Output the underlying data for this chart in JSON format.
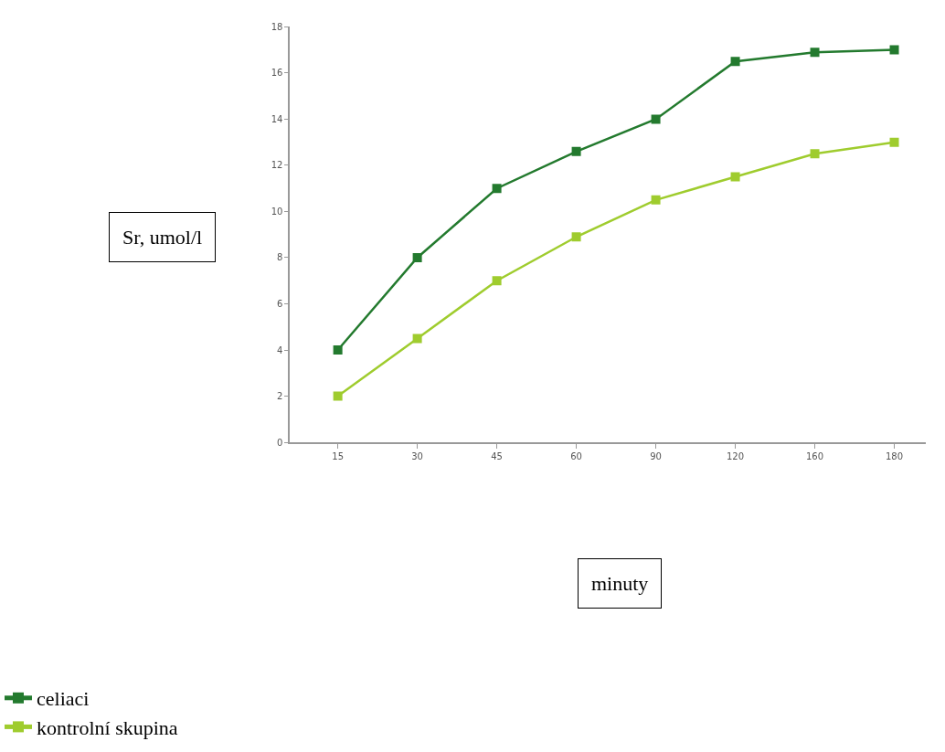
{
  "chart_data": {
    "type": "line",
    "annotations": [
      "minuty"
    ],
    "ylabel": "Sr, umol/l",
    "categories": [
      "15",
      "30",
      "45",
      "60",
      "90",
      "120",
      "160",
      "180"
    ],
    "series": [
      {
        "name": "celiaci",
        "color": "#237a2e",
        "values": [
          4,
          8,
          11,
          12.6,
          14,
          16.5,
          16.9,
          17
        ]
      },
      {
        "name": "kontrolní skupina",
        "color": "#9fcc2e",
        "values": [
          2,
          4.5,
          7,
          8.9,
          10.5,
          11.5,
          12.5,
          13
        ]
      }
    ],
    "ylim": [
      0,
      18
    ],
    "yticks": [
      0,
      2,
      4,
      6,
      8,
      10,
      12,
      14,
      16,
      18
    ],
    "legend": "bottom left",
    "marker": "square",
    "line_style": "solid"
  }
}
